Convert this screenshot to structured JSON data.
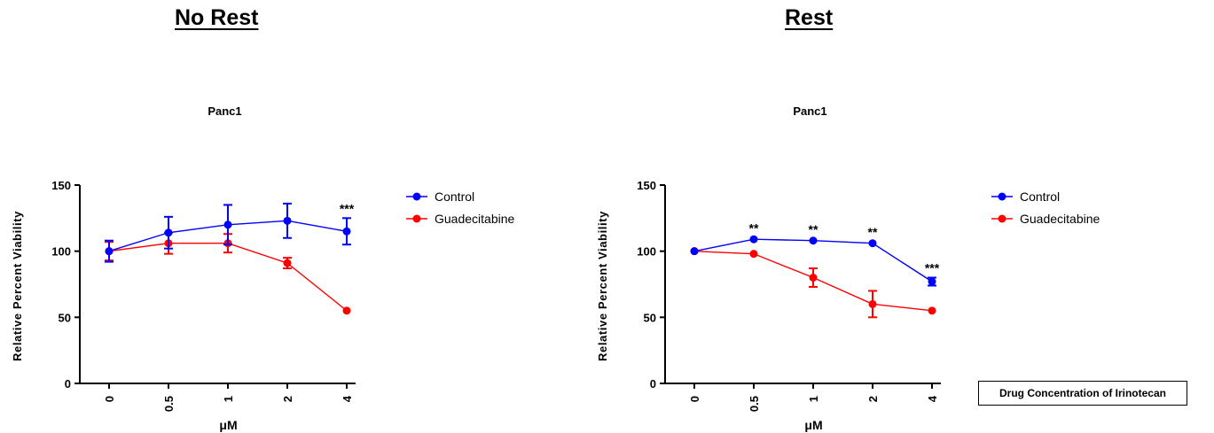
{
  "headings": {
    "left": "No Rest",
    "right": "Rest"
  },
  "caption": "Drug Concentration of Irinotecan",
  "colors": {
    "control": "#0000ff",
    "guadecitabine": "#ff0000"
  },
  "chart_data": [
    {
      "type": "line",
      "title": "Panc1",
      "xlabel": "μM",
      "ylabel": "Relative Percent Viability",
      "ylim": [
        0,
        150
      ],
      "yticks": [
        "0",
        "50",
        "100",
        "150"
      ],
      "categories": [
        "0",
        "0.5",
        "1",
        "2",
        "4"
      ],
      "legend": "right",
      "series": [
        {
          "name": "Control",
          "color": "#0000ff",
          "values": [
            100,
            114,
            120,
            123,
            115
          ],
          "errors": [
            8,
            12,
            15,
            13,
            10
          ]
        },
        {
          "name": "Guadecitabine",
          "color": "#ff0000",
          "values": [
            100,
            106,
            106,
            91,
            55
          ],
          "errors": [
            7,
            8,
            7,
            4,
            1
          ]
        }
      ],
      "annotations": [
        {
          "category": "4",
          "text": "***"
        }
      ]
    },
    {
      "type": "line",
      "title": "Panc1",
      "xlabel": "μM",
      "ylabel": "Relative Percent Viability",
      "ylim": [
        0,
        150
      ],
      "yticks": [
        "0",
        "50",
        "100",
        "150"
      ],
      "categories": [
        "0",
        "0.5",
        "1",
        "2",
        "4"
      ],
      "legend": "right",
      "series": [
        {
          "name": "Control",
          "color": "#0000ff",
          "values": [
            100,
            109,
            108,
            106,
            77
          ],
          "errors": [
            1,
            1,
            1,
            1,
            3
          ]
        },
        {
          "name": "Guadecitabine",
          "color": "#ff0000",
          "values": [
            100,
            98,
            80,
            60,
            55
          ],
          "errors": [
            1,
            1,
            7,
            10,
            1
          ]
        }
      ],
      "annotations": [
        {
          "category": "0.5",
          "text": "**"
        },
        {
          "category": "1",
          "text": "**"
        },
        {
          "category": "2",
          "text": "**"
        },
        {
          "category": "4",
          "text": "***"
        }
      ]
    }
  ]
}
